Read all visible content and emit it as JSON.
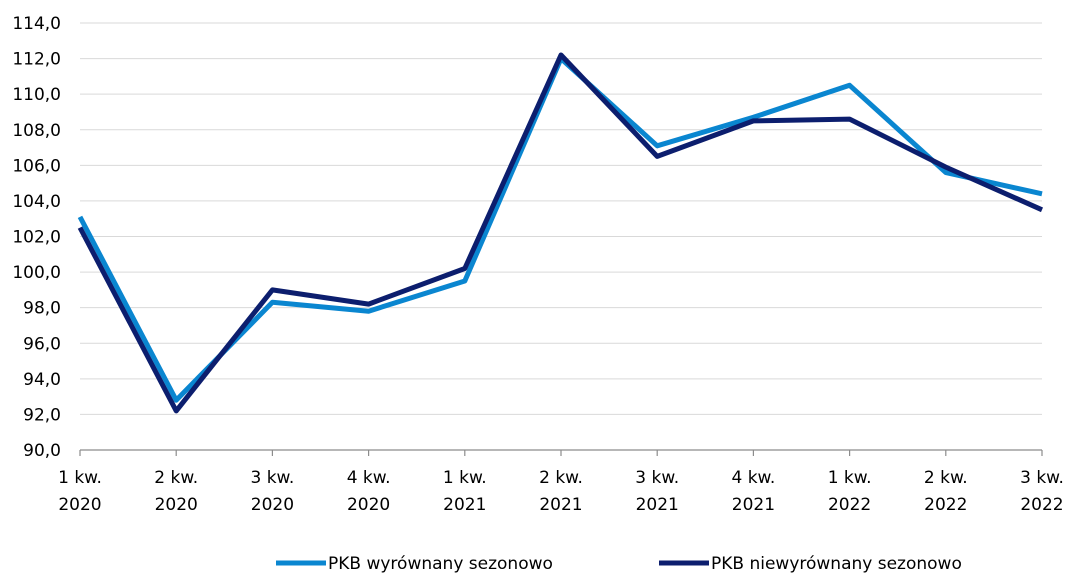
{
  "chart_data": {
    "type": "line",
    "title": "",
    "xlabel": "",
    "ylabel": "",
    "categories": [
      [
        "1 kw.",
        "2020"
      ],
      [
        "2 kw.",
        "2020"
      ],
      [
        "3 kw.",
        "2020"
      ],
      [
        "4 kw.",
        "2020"
      ],
      [
        "1 kw.",
        "2021"
      ],
      [
        "2 kw.",
        "2021"
      ],
      [
        "3 kw.",
        "2021"
      ],
      [
        "4 kw.",
        "2021"
      ],
      [
        "1 kw.",
        "2022"
      ],
      [
        "2 kw.",
        "2022"
      ],
      [
        "3 kw.",
        "2022"
      ]
    ],
    "ylim": [
      90,
      114
    ],
    "yticks": [
      "90,0",
      "92,0",
      "94,0",
      "96,0",
      "98,0",
      "100,0",
      "102,0",
      "104,0",
      "106,0",
      "108,0",
      "110,0",
      "112,0",
      "114,0"
    ],
    "ytick_values": [
      90,
      92,
      94,
      96,
      98,
      100,
      102,
      104,
      106,
      108,
      110,
      112,
      114
    ],
    "grid": true,
    "legend_position": "bottom",
    "series": [
      {
        "name": "PKB wyrównany sezonowo",
        "color": "#0a86d0",
        "values": [
          103.1,
          92.8,
          98.3,
          97.8,
          99.5,
          112.0,
          107.1,
          108.7,
          110.5,
          105.6,
          104.4
        ]
      },
      {
        "name": "PKB niewyrównany sezonowo",
        "color": "#0c1e6e",
        "values": [
          102.5,
          92.2,
          99.0,
          98.2,
          100.2,
          112.2,
          106.5,
          108.5,
          108.6,
          105.9,
          103.5
        ]
      }
    ]
  }
}
